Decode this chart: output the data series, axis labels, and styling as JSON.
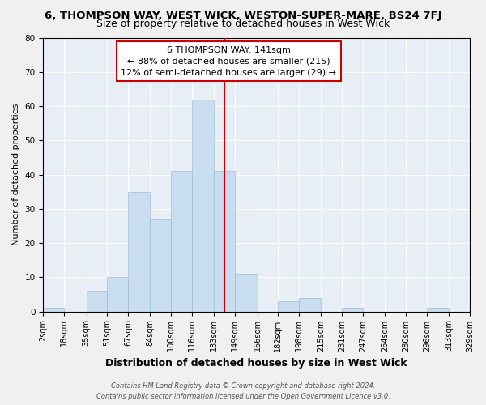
{
  "title": "6, THOMPSON WAY, WEST WICK, WESTON-SUPER-MARE, BS24 7FJ",
  "subtitle": "Size of property relative to detached houses in West Wick",
  "xlabel": "Distribution of detached houses by size in West Wick",
  "ylabel": "Number of detached properties",
  "bar_color": "#c8ddef",
  "bar_edge_color": "#a0bcd8",
  "bin_edges": [
    2,
    18,
    35,
    51,
    67,
    84,
    100,
    116,
    133,
    149,
    166,
    182,
    198,
    215,
    231,
    247,
    264,
    280,
    296,
    313,
    329
  ],
  "counts": [
    1,
    0,
    6,
    10,
    35,
    27,
    41,
    62,
    41,
    11,
    0,
    3,
    4,
    0,
    1,
    0,
    0,
    0,
    1,
    0
  ],
  "tick_labels": [
    "2sqm",
    "18sqm",
    "35sqm",
    "51sqm",
    "67sqm",
    "84sqm",
    "100sqm",
    "116sqm",
    "133sqm",
    "149sqm",
    "166sqm",
    "182sqm",
    "198sqm",
    "215sqm",
    "231sqm",
    "247sqm",
    "264sqm",
    "280sqm",
    "296sqm",
    "313sqm",
    "329sqm"
  ],
  "vline_x": 141,
  "vline_color": "#cc0000",
  "annotation_title": "6 THOMPSON WAY: 141sqm",
  "annotation_line1": "← 88% of detached houses are smaller (215)",
  "annotation_line2": "12% of semi-detached houses are larger (29) →",
  "ylim": [
    0,
    80
  ],
  "yticks": [
    0,
    10,
    20,
    30,
    40,
    50,
    60,
    70,
    80
  ],
  "footer1": "Contains HM Land Registry data © Crown copyright and database right 2024.",
  "footer2": "Contains public sector information licensed under the Open Government Licence v3.0.",
  "bg_color": "#f0f0f0",
  "plot_bg_color": "#e8eef5",
  "grid_color": "#ffffff",
  "title_fontsize": 9.5,
  "subtitle_fontsize": 9,
  "annotation_fontsize": 8,
  "tick_fontsize": 7,
  "ylabel_fontsize": 8,
  "xlabel_fontsize": 9
}
